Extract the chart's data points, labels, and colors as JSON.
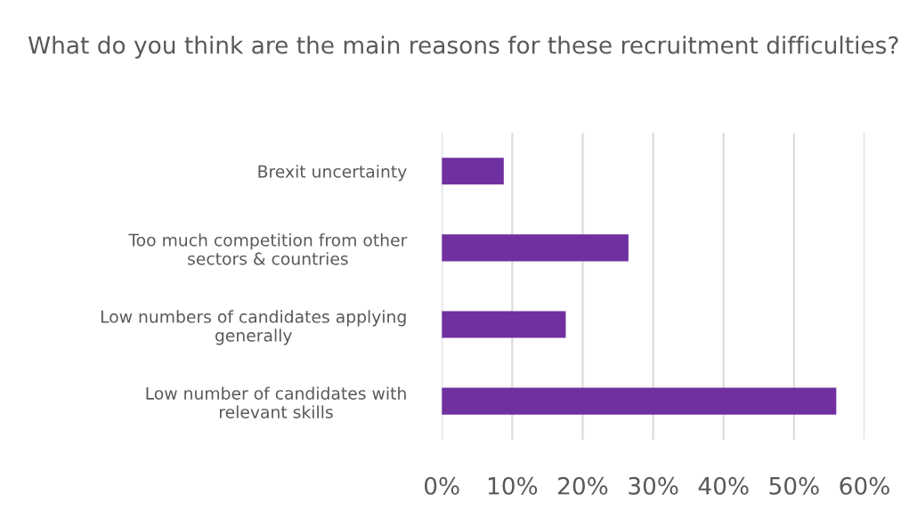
{
  "chart_data": {
    "type": "bar",
    "orientation": "horizontal",
    "title": "What do you think are the main reasons for these recruitment difficulties?",
    "categories": [
      "Brexit uncertainty",
      "Too much competition from other\nsectors & countries",
      "Low numbers of candidates applying\ngenerally",
      "Low number of candidates with\nrelevant skills"
    ],
    "values": [
      8.8,
      26.5,
      17.6,
      56.0
    ],
    "color": "#7030a0",
    "xlim": [
      0,
      60
    ],
    "xticks": [
      {
        "value": 0,
        "label": "0%"
      },
      {
        "value": 10,
        "label": "10%"
      },
      {
        "value": 20,
        "label": "20%"
      },
      {
        "value": 30,
        "label": "30%"
      },
      {
        "value": 40,
        "label": "40%"
      },
      {
        "value": 50,
        "label": "50%"
      },
      {
        "value": 60,
        "label": "60%"
      }
    ],
    "grid": "x"
  }
}
